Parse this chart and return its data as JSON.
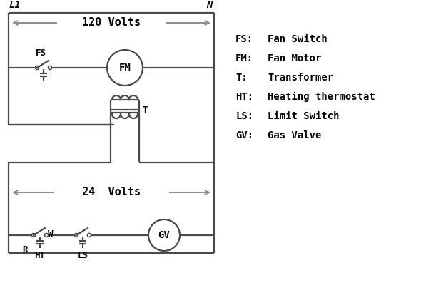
{
  "bg_color": "#ffffff",
  "line_color": "#4a4a4a",
  "arrow_color": "#909090",
  "text_color": "#000000",
  "legend": [
    [
      "FS:",
      "Fan Switch"
    ],
    [
      "FM:",
      "Fan Motor"
    ],
    [
      "T:",
      "Transformer"
    ],
    [
      "HT:",
      "Heating thermostat"
    ],
    [
      "LS:",
      "Limit Switch"
    ],
    [
      "GV:",
      "Gas Valve"
    ]
  ],
  "volts_120": "120 Volts",
  "volts_24": "24  Volts",
  "label_L1": "L1",
  "label_N": "N",
  "label_T": "T"
}
